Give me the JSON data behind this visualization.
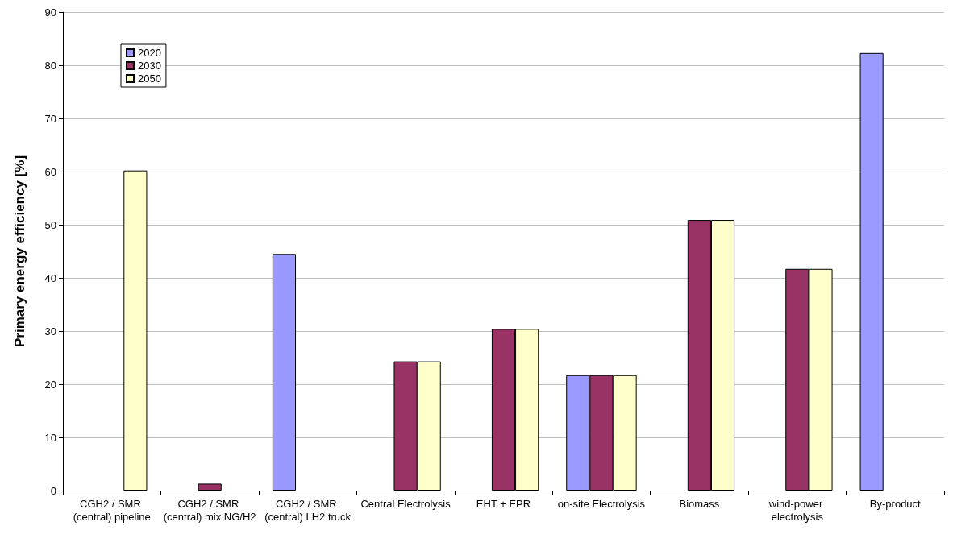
{
  "chart_data": {
    "type": "bar",
    "ylabel": "Primary energy efficiency [%]",
    "categories": [
      "CGH2 / SMR (central) pipeline",
      "CGH2 / SMR (central) mix NG/H2",
      "CGH2 / SMR (central) LH2 truck",
      "Central Electrolysis",
      "EHT + EPR",
      "on-site Electrolysis",
      "Biomass",
      "wind-power electrolysis",
      "By-product"
    ],
    "series": [
      {
        "name": "2020",
        "color": "#9999ff",
        "values": [
          null,
          null,
          44.5,
          null,
          null,
          21.7,
          null,
          null,
          82.3
        ]
      },
      {
        "name": "2030",
        "color": "#993366",
        "values": [
          null,
          1.3,
          null,
          24.3,
          30.4,
          21.7,
          50.9,
          41.7,
          null
        ]
      },
      {
        "name": "2050",
        "color": "#ffffcc",
        "values": [
          60.2,
          null,
          null,
          24.3,
          30.4,
          21.7,
          50.9,
          41.7,
          null
        ]
      }
    ],
    "ylim": [
      0,
      90
    ],
    "yticks": [
      0,
      10,
      20,
      30,
      40,
      50,
      60,
      70,
      80,
      90
    ],
    "grid": "y",
    "legend": "top left"
  }
}
